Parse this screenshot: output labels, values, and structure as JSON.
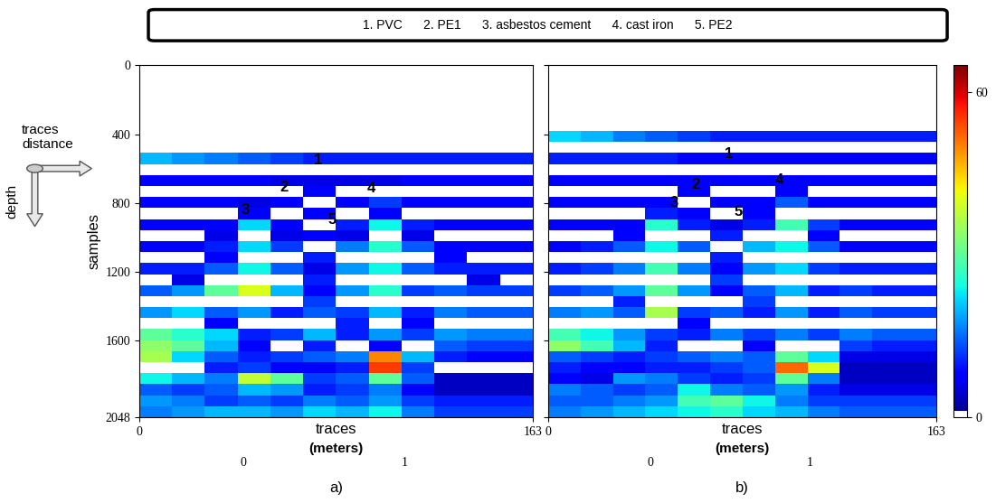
{
  "header": {
    "items": [
      "1. PVC",
      "2. PE1",
      "3. asbestos cement",
      "4. cast iron",
      "5. PE2"
    ]
  },
  "axis_icon": {
    "horizontal": "traces\ndistance",
    "vertical": "depth"
  },
  "colorbar": {
    "range": [
      0,
      65
    ],
    "ticks": [
      0,
      60
    ]
  },
  "chart_data": [
    {
      "type": "heatmap",
      "panel": "a)",
      "xlabel": "traces",
      "ylabel": "samples",
      "xlim": [
        0,
        163
      ],
      "ylim": [
        2048,
        0
      ],
      "xticks": [
        0,
        163
      ],
      "yticks": [
        0,
        400,
        800,
        1200,
        1600,
        2048
      ],
      "secondary_x": {
        "label": "(meters)",
        "ticks": [
          {
            "value": 43,
            "label": "0"
          },
          {
            "value": 110,
            "label": "1"
          }
        ]
      },
      "annotations": [
        {
          "text": "1",
          "x": 74,
          "y": 554
        },
        {
          "text": "2",
          "x": 60,
          "y": 707
        },
        {
          "text": "3",
          "x": 44,
          "y": 841
        },
        {
          "text": "4",
          "x": 96,
          "y": 717
        },
        {
          "text": "5",
          "x": 80,
          "y": 900
        }
      ],
      "cells": [
        [
          0,
          0,
          0,
          0,
          0,
          0,
          0,
          0,
          0,
          0,
          0,
          0
        ],
        [
          0,
          0,
          0,
          0,
          0,
          0,
          0,
          0,
          0,
          0,
          0,
          0
        ],
        [
          0,
          0,
          0,
          0,
          0,
          0,
          0,
          0,
          0,
          0,
          0,
          0
        ],
        [
          0,
          0,
          0,
          0,
          0,
          0,
          0,
          0,
          0,
          0,
          0,
          0
        ],
        [
          0,
          0,
          0,
          0,
          0,
          0,
          0,
          0,
          0,
          0,
          0,
          0
        ],
        [
          0,
          0,
          0,
          0,
          0,
          0,
          0,
          0,
          0,
          0,
          0,
          0
        ],
        [
          0,
          0,
          0,
          0,
          0,
          0,
          0,
          0,
          0,
          0,
          0,
          0
        ],
        [
          0,
          0,
          0,
          0,
          0,
          0,
          0,
          0,
          0,
          0,
          0,
          0
        ],
        [
          20,
          18,
          16,
          14,
          12,
          10,
          10,
          10,
          10,
          10,
          10,
          10
        ],
        [
          0,
          0,
          0,
          0,
          0,
          0,
          0,
          0,
          0,
          0,
          0,
          0
        ],
        [
          8,
          8,
          8,
          8,
          6,
          6,
          6,
          6,
          8,
          8,
          8,
          8
        ],
        [
          0,
          0,
          0,
          0,
          0,
          8,
          0,
          0,
          0,
          0,
          0,
          0
        ],
        [
          8,
          8,
          8,
          6,
          8,
          0,
          8,
          12,
          8,
          8,
          8,
          8
        ],
        [
          0,
          0,
          0,
          8,
          0,
          8,
          0,
          8,
          0,
          0,
          0,
          0
        ],
        [
          8,
          8,
          8,
          22,
          8,
          0,
          10,
          24,
          10,
          8,
          8,
          8
        ],
        [
          0,
          0,
          6,
          0,
          6,
          8,
          6,
          0,
          6,
          0,
          0,
          0
        ],
        [
          8,
          8,
          10,
          22,
          12,
          0,
          16,
          26,
          14,
          8,
          8,
          8
        ],
        [
          0,
          0,
          8,
          0,
          0,
          10,
          0,
          0,
          0,
          8,
          0,
          0
        ],
        [
          10,
          10,
          14,
          24,
          14,
          6,
          18,
          24,
          14,
          10,
          10,
          10
        ],
        [
          0,
          6,
          0,
          0,
          0,
          10,
          0,
          0,
          0,
          0,
          6,
          0
        ],
        [
          14,
          18,
          30,
          40,
          20,
          8,
          18,
          26,
          12,
          14,
          12,
          12
        ],
        [
          0,
          0,
          0,
          0,
          0,
          12,
          0,
          0,
          0,
          0,
          0,
          0
        ],
        [
          18,
          22,
          14,
          18,
          10,
          14,
          12,
          20,
          10,
          16,
          14,
          14
        ],
        [
          0,
          0,
          8,
          0,
          0,
          0,
          10,
          0,
          8,
          0,
          0,
          0
        ],
        [
          30,
          26,
          22,
          10,
          12,
          20,
          10,
          18,
          12,
          18,
          16,
          16
        ],
        [
          34,
          30,
          20,
          8,
          0,
          10,
          0,
          8,
          0,
          14,
          12,
          12
        ],
        [
          36,
          22,
          14,
          10,
          12,
          14,
          16,
          50,
          20,
          10,
          8,
          8
        ],
        [
          0,
          0,
          10,
          12,
          8,
          8,
          10,
          55,
          12,
          0,
          0,
          0
        ],
        [
          24,
          20,
          16,
          38,
          30,
          12,
          14,
          30,
          14,
          4,
          4,
          4
        ],
        [
          14,
          12,
          14,
          20,
          18,
          10,
          12,
          16,
          8,
          4,
          4,
          4
        ],
        [
          18,
          16,
          12,
          14,
          12,
          16,
          14,
          18,
          12,
          10,
          10,
          10
        ],
        [
          16,
          18,
          20,
          20,
          18,
          22,
          20,
          24,
          16,
          12,
          12,
          12
        ]
      ]
    },
    {
      "type": "heatmap",
      "panel": "b)",
      "xlabel": "traces",
      "tick_labels": "x",
      "xlim": [
        0,
        163
      ],
      "ylim": [
        2048,
        0
      ],
      "xticks": [
        0,
        163
      ],
      "yticks": [
        0,
        400,
        800,
        1200,
        1600,
        2048
      ],
      "secondary_x": {
        "label": "(meters)",
        "ticks": [
          {
            "value": 43,
            "label": "0"
          },
          {
            "value": 110,
            "label": "1"
          }
        ]
      },
      "annotations": [
        {
          "text": "1",
          "x": 76,
          "y": 514
        },
        {
          "text": "2",
          "x": 62,
          "y": 693
        },
        {
          "text": "3",
          "x": 53,
          "y": 801
        },
        {
          "text": "4",
          "x": 97,
          "y": 668
        },
        {
          "text": "5",
          "x": 80,
          "y": 851
        }
      ],
      "cells": [
        [
          0,
          0,
          0,
          0,
          0,
          0,
          0,
          0,
          0,
          0,
          0,
          0
        ],
        [
          0,
          0,
          0,
          0,
          0,
          0,
          0,
          0,
          0,
          0,
          0,
          0
        ],
        [
          0,
          0,
          0,
          0,
          0,
          0,
          0,
          0,
          0,
          0,
          0,
          0
        ],
        [
          0,
          0,
          0,
          0,
          0,
          0,
          0,
          0,
          0,
          0,
          0,
          0
        ],
        [
          0,
          0,
          0,
          0,
          0,
          0,
          0,
          0,
          0,
          0,
          0,
          0
        ],
        [
          0,
          0,
          0,
          0,
          0,
          0,
          0,
          0,
          0,
          0,
          0,
          0
        ],
        [
          22,
          20,
          16,
          14,
          12,
          10,
          10,
          10,
          10,
          10,
          10,
          10
        ],
        [
          0,
          0,
          0,
          0,
          0,
          0,
          0,
          0,
          0,
          0,
          0,
          0
        ],
        [
          10,
          10,
          10,
          10,
          8,
          8,
          8,
          8,
          8,
          8,
          8,
          8
        ],
        [
          0,
          0,
          0,
          0,
          0,
          0,
          0,
          0,
          0,
          0,
          0,
          0
        ],
        [
          8,
          8,
          8,
          8,
          8,
          8,
          8,
          8,
          8,
          8,
          8,
          8
        ],
        [
          0,
          0,
          0,
          0,
          8,
          0,
          0,
          8,
          0,
          0,
          0,
          0
        ],
        [
          8,
          8,
          8,
          8,
          0,
          8,
          8,
          14,
          8,
          8,
          8,
          8
        ],
        [
          0,
          0,
          0,
          10,
          8,
          0,
          8,
          0,
          0,
          0,
          0,
          0
        ],
        [
          8,
          8,
          8,
          26,
          10,
          6,
          10,
          28,
          12,
          8,
          8,
          8
        ],
        [
          0,
          0,
          8,
          0,
          0,
          10,
          0,
          0,
          8,
          0,
          0,
          0
        ],
        [
          8,
          10,
          14,
          24,
          14,
          0,
          20,
          24,
          14,
          8,
          8,
          8
        ],
        [
          0,
          0,
          0,
          0,
          0,
          10,
          0,
          0,
          0,
          0,
          0,
          0
        ],
        [
          10,
          12,
          16,
          28,
          16,
          8,
          18,
          22,
          12,
          10,
          10,
          10
        ],
        [
          0,
          0,
          0,
          0,
          0,
          12,
          0,
          0,
          0,
          0,
          0,
          0
        ],
        [
          12,
          14,
          18,
          30,
          18,
          8,
          14,
          20,
          10,
          12,
          10,
          10
        ],
        [
          0,
          0,
          10,
          0,
          0,
          0,
          12,
          0,
          0,
          0,
          0,
          0
        ],
        [
          16,
          18,
          14,
          36,
          12,
          14,
          10,
          18,
          10,
          14,
          12,
          12
        ],
        [
          0,
          0,
          0,
          0,
          8,
          0,
          0,
          0,
          0,
          0,
          0,
          0
        ],
        [
          28,
          24,
          18,
          12,
          10,
          16,
          12,
          16,
          12,
          16,
          14,
          14
        ],
        [
          34,
          28,
          20,
          10,
          0,
          0,
          8,
          0,
          0,
          12,
          10,
          10
        ],
        [
          14,
          12,
          10,
          12,
          14,
          16,
          14,
          30,
          22,
          6,
          6,
          6
        ],
        [
          10,
          8,
          8,
          10,
          10,
          12,
          14,
          52,
          40,
          4,
          4,
          4
        ],
        [
          8,
          6,
          18,
          16,
          12,
          10,
          12,
          30,
          16,
          4,
          4,
          4
        ],
        [
          16,
          14,
          12,
          14,
          24,
          16,
          14,
          18,
          10,
          6,
          6,
          6
        ],
        [
          14,
          14,
          16,
          18,
          28,
          30,
          24,
          16,
          12,
          12,
          12,
          12
        ],
        [
          16,
          18,
          20,
          22,
          24,
          26,
          22,
          20,
          16,
          14,
          14,
          14
        ]
      ]
    }
  ]
}
